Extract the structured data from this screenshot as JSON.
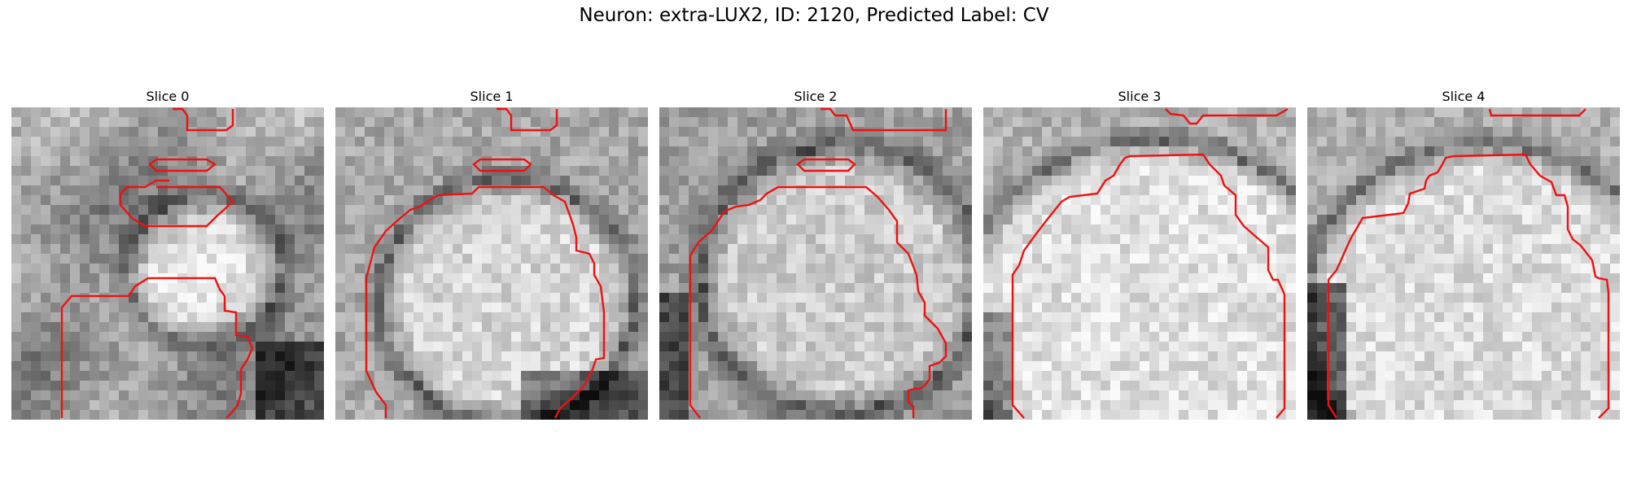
{
  "figure": {
    "title": "Neuron: extra-LUX2, ID: 2120, Predicted Label: CV",
    "contour_color": "#ee1111",
    "colormap": "grayscale",
    "panels": [
      {
        "title": "Slice 0",
        "seed": 11,
        "pattern": "patchy"
      },
      {
        "title": "Slice 1",
        "seed": 23,
        "pattern": "ring-small"
      },
      {
        "title": "Slice 2",
        "seed": 37,
        "pattern": "ring-large"
      },
      {
        "title": "Slice 3",
        "seed": 49,
        "pattern": "ring-top"
      },
      {
        "title": "Slice 4",
        "seed": 61,
        "pattern": "ring-top-dark-left"
      }
    ]
  }
}
